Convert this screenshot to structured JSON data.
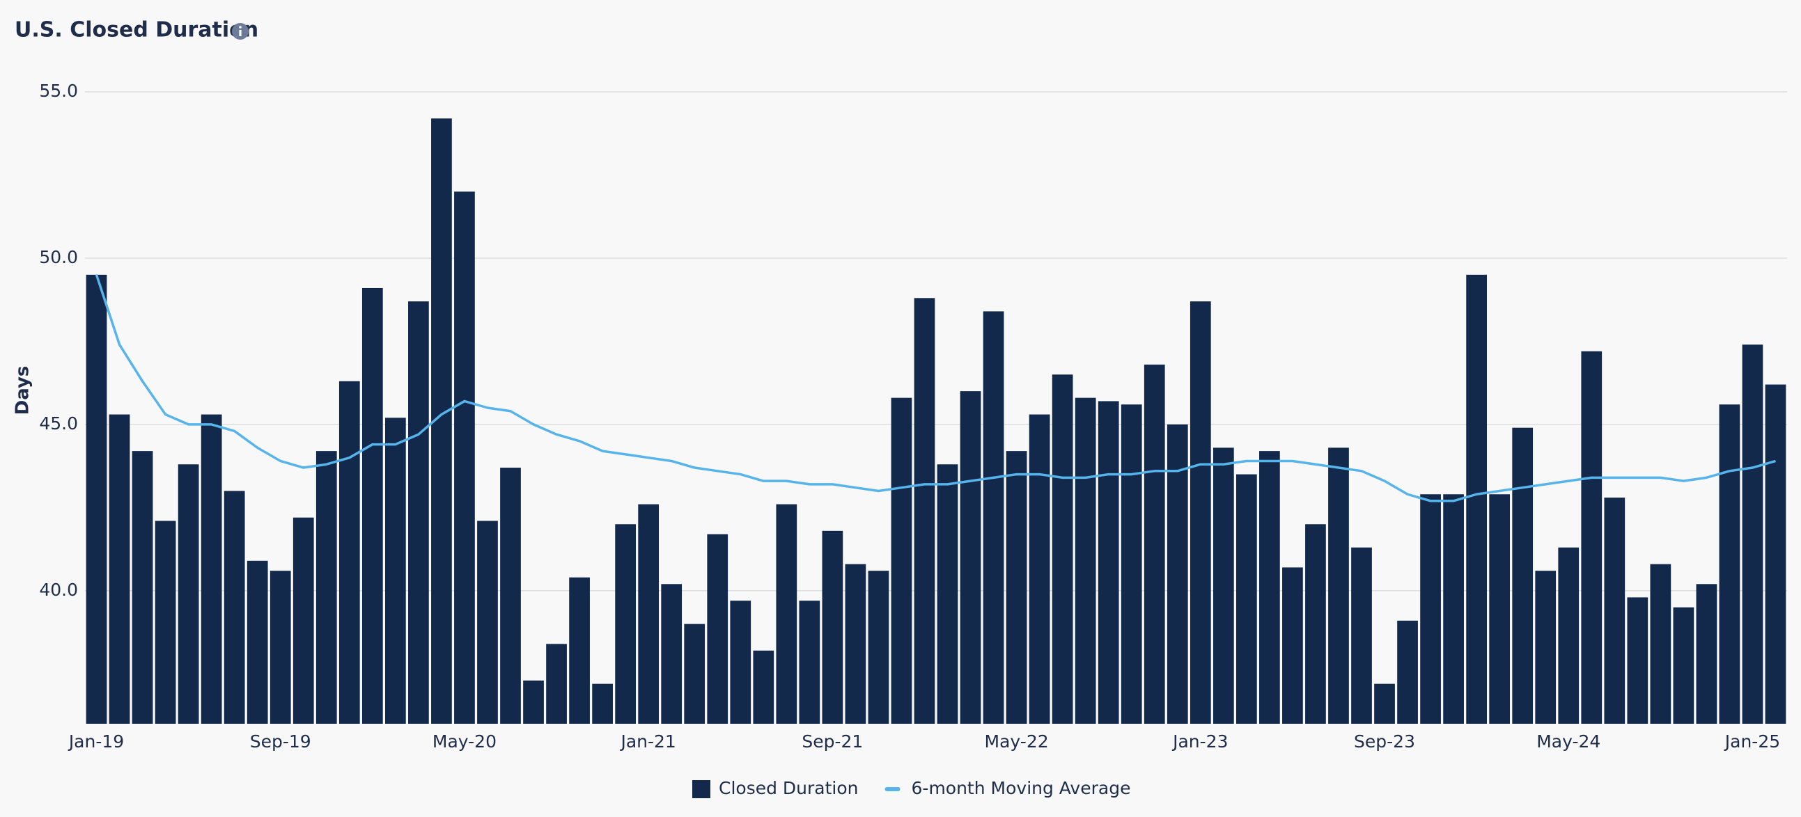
{
  "chart_data": {
    "type": "bar",
    "title": "U.S. Closed Duration",
    "y_label": "Days",
    "categories": [
      "Jan-19",
      null,
      null,
      null,
      null,
      null,
      null,
      null,
      "Sep-19",
      null,
      null,
      null,
      null,
      null,
      null,
      null,
      "May-20",
      null,
      null,
      null,
      null,
      null,
      null,
      null,
      "Jan-21",
      null,
      null,
      null,
      null,
      null,
      null,
      null,
      "Sep-21",
      null,
      null,
      null,
      null,
      null,
      null,
      null,
      "May-22",
      null,
      null,
      null,
      null,
      null,
      null,
      null,
      "Jan-23",
      null,
      null,
      null,
      null,
      null,
      null,
      null,
      "Sep-23",
      null,
      null,
      null,
      null,
      null,
      null,
      null,
      "May-24",
      null,
      null,
      null,
      null,
      null,
      null,
      null,
      "Jan-25",
      null
    ],
    "series": [
      {
        "name": "Closed Duration",
        "type": "bar",
        "color": "#13294b",
        "values": [
          49.5,
          45.3,
          44.2,
          42.1,
          43.8,
          45.3,
          43.0,
          40.9,
          40.6,
          42.2,
          44.2,
          46.3,
          49.1,
          45.2,
          48.7,
          54.2,
          52.0,
          42.1,
          43.7,
          37.3,
          38.4,
          40.4,
          37.2,
          42.0,
          42.6,
          40.2,
          39.0,
          41.7,
          39.7,
          38.2,
          42.6,
          39.7,
          41.8,
          40.8,
          40.6,
          45.8,
          48.8,
          43.8,
          46.0,
          48.4,
          44.2,
          45.3,
          46.5,
          45.8,
          45.7,
          45.6,
          46.8,
          45.0,
          48.7,
          44.3,
          43.5,
          44.2,
          40.7,
          42.0,
          44.3,
          41.3,
          37.2,
          39.1,
          42.9,
          42.9,
          49.5,
          42.9,
          44.9,
          40.6,
          41.3,
          47.2,
          42.8,
          39.8,
          40.8,
          39.5,
          40.2,
          45.6,
          47.4,
          46.2
        ]
      },
      {
        "name": "6-month Moving Average",
        "type": "line",
        "color": "#56b4ea",
        "values": [
          49.5,
          47.4,
          46.3,
          45.3,
          45.0,
          45.0,
          44.8,
          44.3,
          43.9,
          43.7,
          43.8,
          44.0,
          44.4,
          44.4,
          44.7,
          45.3,
          45.7,
          45.5,
          45.4,
          45.0,
          44.7,
          44.5,
          44.2,
          44.1,
          44.0,
          43.9,
          43.7,
          43.6,
          43.5,
          43.3,
          43.3,
          43.2,
          43.2,
          43.1,
          43.0,
          43.1,
          43.2,
          43.2,
          43.3,
          43.4,
          43.5,
          43.5,
          43.4,
          43.4,
          43.5,
          43.5,
          43.6,
          43.6,
          43.8,
          43.8,
          43.9,
          43.9,
          43.9,
          43.8,
          43.7,
          43.6,
          43.3,
          42.9,
          42.7,
          42.7,
          42.9,
          43.0,
          43.1,
          43.2,
          43.3,
          43.4,
          43.4,
          43.4,
          43.4,
          43.3,
          43.4,
          43.6,
          43.7,
          43.9
        ]
      }
    ],
    "ylim": [
      36,
      55
    ],
    "yticks": [
      {
        "value": 40,
        "label": "40.0"
      },
      {
        "value": 45,
        "label": "45.0"
      },
      {
        "value": 50,
        "label": "50.0"
      },
      {
        "value": 55,
        "label": "55.0"
      }
    ],
    "grid": true,
    "legend": "bottom"
  }
}
